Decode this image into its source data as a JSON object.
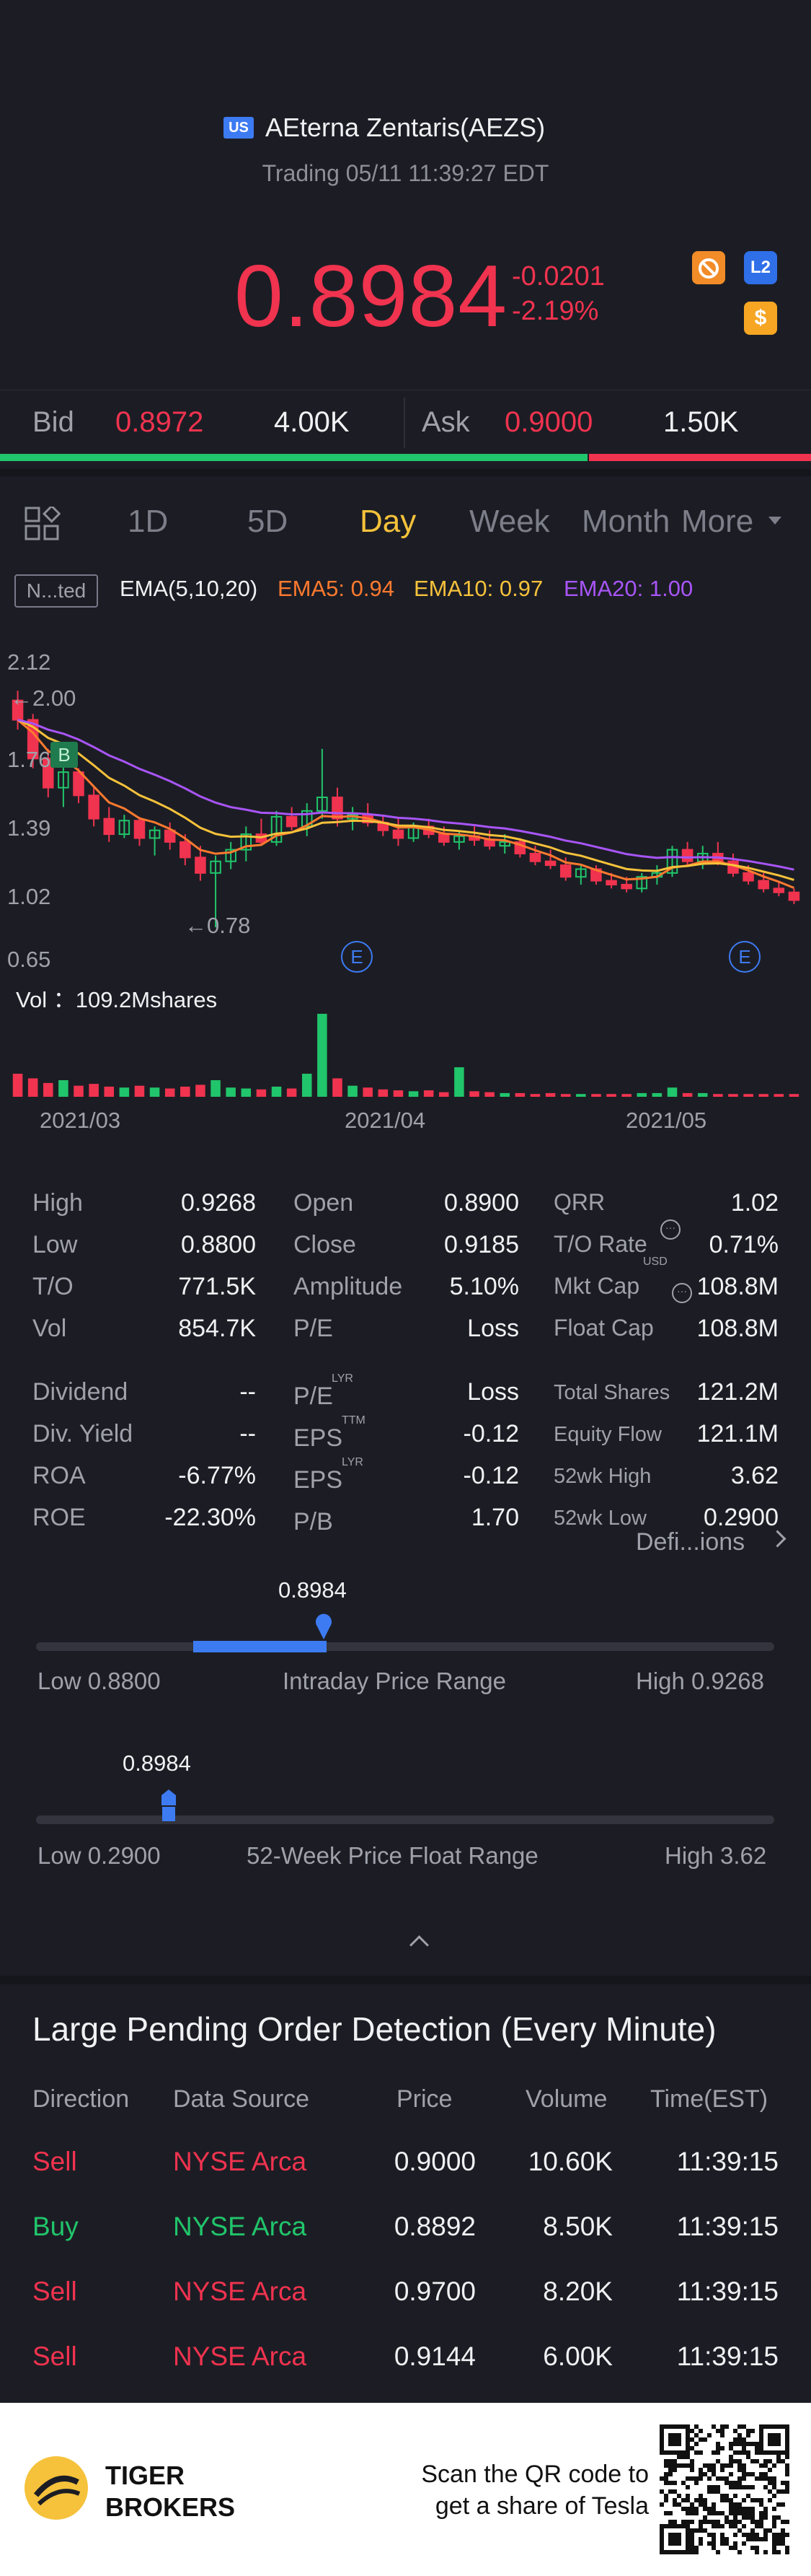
{
  "header": {
    "region_badge": "US",
    "stock_name": "AEterna Zentaris(AEZS)",
    "trading_status": "Trading 05/11 11:39:27 EDT",
    "price": "0.8984",
    "change": "-0.0201",
    "change_pct": "-2.19%",
    "icons": [
      "gauge-icon",
      "l2-icon",
      "dollar-icon"
    ],
    "l2_label": "L2",
    "dollar_label": "$"
  },
  "bidask": {
    "bid_label": "Bid",
    "bid_price": "0.8972",
    "bid_size": "4.00K",
    "ask_label": "Ask",
    "ask_price": "0.9000",
    "ask_size": "1.50K"
  },
  "tabs": {
    "items": [
      "1D",
      "5D",
      "Day",
      "Week",
      "Month",
      "More"
    ],
    "active": "Day"
  },
  "ema": {
    "box_label": "N...ted",
    "title": "EMA(5,10,20)",
    "ema5": "EMA5: 0.94",
    "ema10": "EMA10: 0.97",
    "ema20": "EMA20: 1.00",
    "color_ema5": "#ff7a2f",
    "color_ema10": "#f6c23b",
    "color_ema20": "#a855f7"
  },
  "chart_data": {
    "type": "candlestick",
    "y_tick_labels": [
      "2.12",
      "1.76",
      "1.39",
      "1.02",
      "0.65"
    ],
    "ylim": [
      0.65,
      2.12
    ],
    "high_marker": "←2.00",
    "low_marker": "←0.78",
    "buy_marker": "B",
    "earnings_marker": "E",
    "x_tick_labels": [
      "2021/03",
      "2021/04",
      "2021/05"
    ],
    "volume_label": "Vol ：109.2Mshares",
    "up_color": "#21c56b",
    "down_color": "#f0334f",
    "candles": [
      [
        1.95,
        2.0,
        1.8,
        1.85
      ],
      [
        1.85,
        1.88,
        1.6,
        1.65
      ],
      [
        1.65,
        1.7,
        1.45,
        1.5
      ],
      [
        1.5,
        1.62,
        1.4,
        1.58
      ],
      [
        1.58,
        1.6,
        1.42,
        1.46
      ],
      [
        1.46,
        1.5,
        1.3,
        1.34
      ],
      [
        1.34,
        1.4,
        1.22,
        1.26
      ],
      [
        1.26,
        1.36,
        1.24,
        1.33
      ],
      [
        1.33,
        1.35,
        1.2,
        1.24
      ],
      [
        1.24,
        1.3,
        1.15,
        1.28
      ],
      [
        1.28,
        1.32,
        1.18,
        1.22
      ],
      [
        1.22,
        1.26,
        1.1,
        1.14
      ],
      [
        1.14,
        1.2,
        1.02,
        1.06
      ],
      [
        1.06,
        1.15,
        0.78,
        1.12
      ],
      [
        1.12,
        1.22,
        1.08,
        1.18
      ],
      [
        1.18,
        1.3,
        1.12,
        1.26
      ],
      [
        1.26,
        1.34,
        1.2,
        1.22
      ],
      [
        1.22,
        1.38,
        1.2,
        1.35
      ],
      [
        1.35,
        1.4,
        1.28,
        1.3
      ],
      [
        1.3,
        1.42,
        1.25,
        1.38
      ],
      [
        1.38,
        1.7,
        1.34,
        1.45
      ],
      [
        1.45,
        1.5,
        1.3,
        1.34
      ],
      [
        1.34,
        1.4,
        1.28,
        1.36
      ],
      [
        1.36,
        1.42,
        1.3,
        1.32
      ],
      [
        1.32,
        1.36,
        1.25,
        1.28
      ],
      [
        1.28,
        1.34,
        1.2,
        1.24
      ],
      [
        1.24,
        1.32,
        1.22,
        1.3
      ],
      [
        1.3,
        1.34,
        1.24,
        1.26
      ],
      [
        1.26,
        1.3,
        1.2,
        1.22
      ],
      [
        1.22,
        1.28,
        1.18,
        1.25
      ],
      [
        1.25,
        1.3,
        1.2,
        1.23
      ],
      [
        1.23,
        1.28,
        1.18,
        1.2
      ],
      [
        1.2,
        1.26,
        1.16,
        1.22
      ],
      [
        1.22,
        1.24,
        1.14,
        1.16
      ],
      [
        1.16,
        1.2,
        1.1,
        1.12
      ],
      [
        1.12,
        1.18,
        1.08,
        1.1
      ],
      [
        1.1,
        1.14,
        1.02,
        1.04
      ],
      [
        1.04,
        1.1,
        1.0,
        1.08
      ],
      [
        1.08,
        1.1,
        1.0,
        1.02
      ],
      [
        1.02,
        1.06,
        0.98,
        1.0
      ],
      [
        1.0,
        1.04,
        0.96,
        0.98
      ],
      [
        0.98,
        1.06,
        0.96,
        1.04
      ],
      [
        1.04,
        1.1,
        1.0,
        1.06
      ],
      [
        1.06,
        1.2,
        1.04,
        1.18
      ],
      [
        1.18,
        1.22,
        1.1,
        1.12
      ],
      [
        1.12,
        1.2,
        1.08,
        1.16
      ],
      [
        1.16,
        1.22,
        1.1,
        1.12
      ],
      [
        1.12,
        1.16,
        1.04,
        1.06
      ],
      [
        1.06,
        1.1,
        1.0,
        1.02
      ],
      [
        1.02,
        1.06,
        0.96,
        0.98
      ],
      [
        0.98,
        1.02,
        0.94,
        0.96
      ],
      [
        0.96,
        0.98,
        0.9,
        0.92
      ]
    ],
    "volumes": [
      2.5,
      2.0,
      1.5,
      1.8,
      1.2,
      1.4,
      1.1,
      1.0,
      1.2,
      1.0,
      0.9,
      1.1,
      1.3,
      1.8,
      1.0,
      0.9,
      0.8,
      1.1,
      0.9,
      2.5,
      9.0,
      2.0,
      1.2,
      1.0,
      0.8,
      0.7,
      0.6,
      0.7,
      0.5,
      3.2,
      0.6,
      0.5,
      0.4,
      0.4,
      0.3,
      0.4,
      0.3,
      0.3,
      0.3,
      0.3,
      0.3,
      0.4,
      0.4,
      1.0,
      0.4,
      0.4,
      0.3,
      0.3,
      0.3,
      0.3,
      0.3,
      0.3
    ]
  },
  "stats": {
    "col1": [
      {
        "label": "High",
        "value": "0.9268"
      },
      {
        "label": "Low",
        "value": "0.8800"
      },
      {
        "label": "T/O",
        "value": "771.5K"
      },
      {
        "label": "Vol",
        "value": "854.7K"
      }
    ],
    "col2": [
      {
        "label": "Open",
        "value": "0.8900"
      },
      {
        "label": "Close",
        "value": "0.9185"
      },
      {
        "label": "Amplitude",
        "value": "5.10%"
      },
      {
        "label": "P/E",
        "value": "Loss"
      }
    ],
    "col3": [
      {
        "label": "QRR",
        "value": "1.02"
      },
      {
        "label": "T/O Rate",
        "value": "0.71%"
      },
      {
        "label": "Mkt Cap",
        "value": "108.8M"
      },
      {
        "label": "Float Cap",
        "value": "108.8M"
      }
    ],
    "col1b": [
      {
        "label": "Dividend",
        "value": "--"
      },
      {
        "label": "Div. Yield",
        "value": "--"
      },
      {
        "label": "ROA",
        "value": "-6.77%"
      },
      {
        "label": "ROE",
        "value": "-22.30%"
      }
    ],
    "col2b": [
      {
        "label": "P/E",
        "sup": "LYR",
        "value": "Loss"
      },
      {
        "label": "EPS",
        "sup": "TTM",
        "value": "-0.12"
      },
      {
        "label": "EPS",
        "sup": "LYR",
        "value": "-0.12"
      },
      {
        "label": "P/B",
        "sup": "",
        "value": "1.70"
      }
    ],
    "col3b": [
      {
        "label": "Total Shares",
        "value": "121.2M"
      },
      {
        "label": "Equity Flow",
        "value": "121.1M"
      },
      {
        "label": "52wk High",
        "value": "3.62"
      },
      {
        "label": "52wk Low",
        "value": "0.2900"
      }
    ],
    "mkt_cap_sup": "USD",
    "definitions_link": "Defi...ions"
  },
  "intraday_range": {
    "current": "0.8984",
    "low_label": "Low 0.8800",
    "title": "Intraday Price Range",
    "high_label": "High 0.9268",
    "position_pct": 39
  },
  "week52_range": {
    "current": "0.8984",
    "low_label": "Low 0.2900",
    "title": "52-Week Price Float Range",
    "high_label": "High 3.62",
    "position_pct": 18
  },
  "orders": {
    "title": "Large Pending Order Detection (Every Minute)",
    "headers": [
      "Direction",
      "Data Source",
      "Price",
      "Volume",
      "Time(EST)"
    ],
    "rows": [
      {
        "direction": "Sell",
        "source": "NYSE Arca",
        "price": "0.9000",
        "volume": "10.60K",
        "time": "11:39:15",
        "side": "sell"
      },
      {
        "direction": "Buy",
        "source": "NYSE Arca",
        "price": "0.8892",
        "volume": "8.50K",
        "time": "11:39:15",
        "side": "buy"
      },
      {
        "direction": "Sell",
        "source": "NYSE Arca",
        "price": "0.9700",
        "volume": "8.20K",
        "time": "11:39:15",
        "side": "sell"
      },
      {
        "direction": "Sell",
        "source": "NYSE Arca",
        "price": "0.9144",
        "volume": "6.00K",
        "time": "11:39:15",
        "side": "sell"
      }
    ]
  },
  "footer": {
    "brand_line1": "TIGER",
    "brand_line2": "BROKERS",
    "scan_line1": "Scan the QR code to",
    "scan_line2": "get a share of Tesla"
  }
}
